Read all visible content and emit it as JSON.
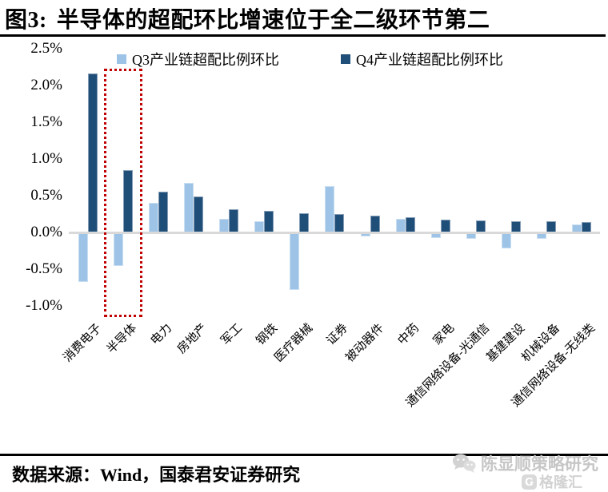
{
  "figure": {
    "title_prefix": "图3:",
    "title": "半导体的超配环比增速位于全二级环节第二"
  },
  "chart_data": {
    "type": "bar",
    "title": "半导体的超配环比增速位于全二级环节第二",
    "categories": [
      "消费电子",
      "半导体",
      "电力",
      "房地产",
      "军工",
      "钢铁",
      "医疗器械",
      "证券",
      "被动器件",
      "中药",
      "家电",
      "通信网络设备-光通信",
      "基建建设",
      "机械设备",
      "通信网络设备-无线类"
    ],
    "series": [
      {
        "name": "Q3产业链超配比例环比",
        "color": "#9dc3e6",
        "values": [
          -0.67,
          -0.46,
          0.4,
          0.67,
          0.19,
          0.15,
          -0.78,
          0.63,
          -0.05,
          0.18,
          -0.08,
          -0.09,
          -0.22,
          -0.09,
          0.11
        ]
      },
      {
        "name": "Q4产业链超配比例环比",
        "color": "#1f4e79",
        "values": [
          2.16,
          0.85,
          0.55,
          0.49,
          0.32,
          0.29,
          0.26,
          0.25,
          0.23,
          0.21,
          0.17,
          0.16,
          0.15,
          0.15,
          0.14
        ]
      }
    ],
    "yticks": [
      "2.5%",
      "2.0%",
      "1.5%",
      "1.0%",
      "0.5%",
      "0.0%",
      "-0.5%",
      "-1.0%"
    ],
    "ylim": [
      -1.0,
      2.5
    ],
    "unit": "%",
    "grid": false,
    "legend_position": "top",
    "highlight": {
      "category": "半导体",
      "style": "red-dotted-box",
      "color": "#c00000"
    }
  },
  "footer": {
    "source": "数据来源：Wind，国泰君安证券研究"
  },
  "watermark": {
    "account": "陈显顺策略研究",
    "logo_letter": "G",
    "logo_text": "格隆汇"
  }
}
